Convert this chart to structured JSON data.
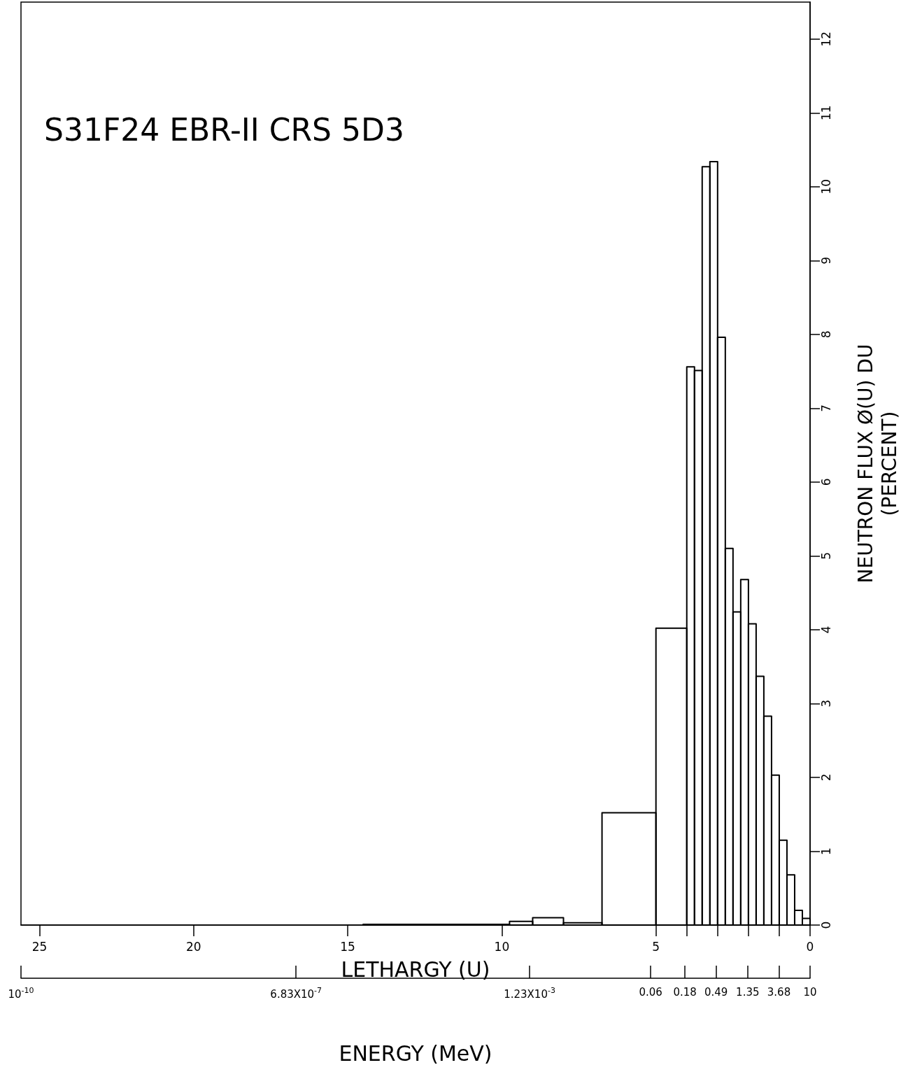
{
  "chart_data": {
    "type": "histogram",
    "title": "S31F24 EBR-II CRS 5D3",
    "xlabel": "LETHARGY (U)",
    "ylabel": "NEUTRON FLUX Ø(U) DU\n(PERCENT)",
    "x2label": "ENERGY (MeV)",
    "bins": [
      14.5,
      9.75,
      9,
      8,
      6.75,
      5,
      4,
      3.75,
      3.5,
      3.25,
      3,
      2.75,
      2.5,
      2.25,
      2,
      1.75,
      1.5,
      1.25,
      1,
      0.75,
      0.5,
      0.25,
      0
    ],
    "values": [
      0.01,
      0.05,
      0.1,
      0.03,
      1.52,
      4.02,
      7.56,
      7.51,
      10.27,
      10.34,
      7.96,
      5.1,
      4.24,
      4.68,
      4.08,
      3.37,
      2.83,
      2.03,
      1.15,
      0.68,
      0.2,
      0.09
    ],
    "color": "#000000",
    "xlim": [
      25.6,
      0
    ],
    "xticks": [
      25,
      20,
      15,
      10,
      5,
      {
        "value": 4,
        "label": null
      },
      {
        "value": 3,
        "label": null
      },
      {
        "value": 2,
        "label": null
      },
      {
        "value": 1,
        "label": null
      },
      0
    ],
    "ylim": [
      0,
      12.5
    ],
    "yticks": [
      0,
      1,
      2,
      3,
      4,
      5,
      6,
      7,
      8,
      9,
      10,
      11,
      12
    ],
    "x2lim": [
      1e-10,
      10
    ],
    "x2ticks": [
      {
        "value": 1e-10,
        "label": "10$^{-10}$"
      },
      {
        "value": 6.83e-07,
        "label": "6.83X10$^{-7}$"
      },
      {
        "value": 0.00123,
        "label": "1.23X10$^{-3}$"
      },
      0.06,
      0.18,
      0.49,
      1.35,
      3.68,
      10
    ],
    "log": "x2"
  }
}
